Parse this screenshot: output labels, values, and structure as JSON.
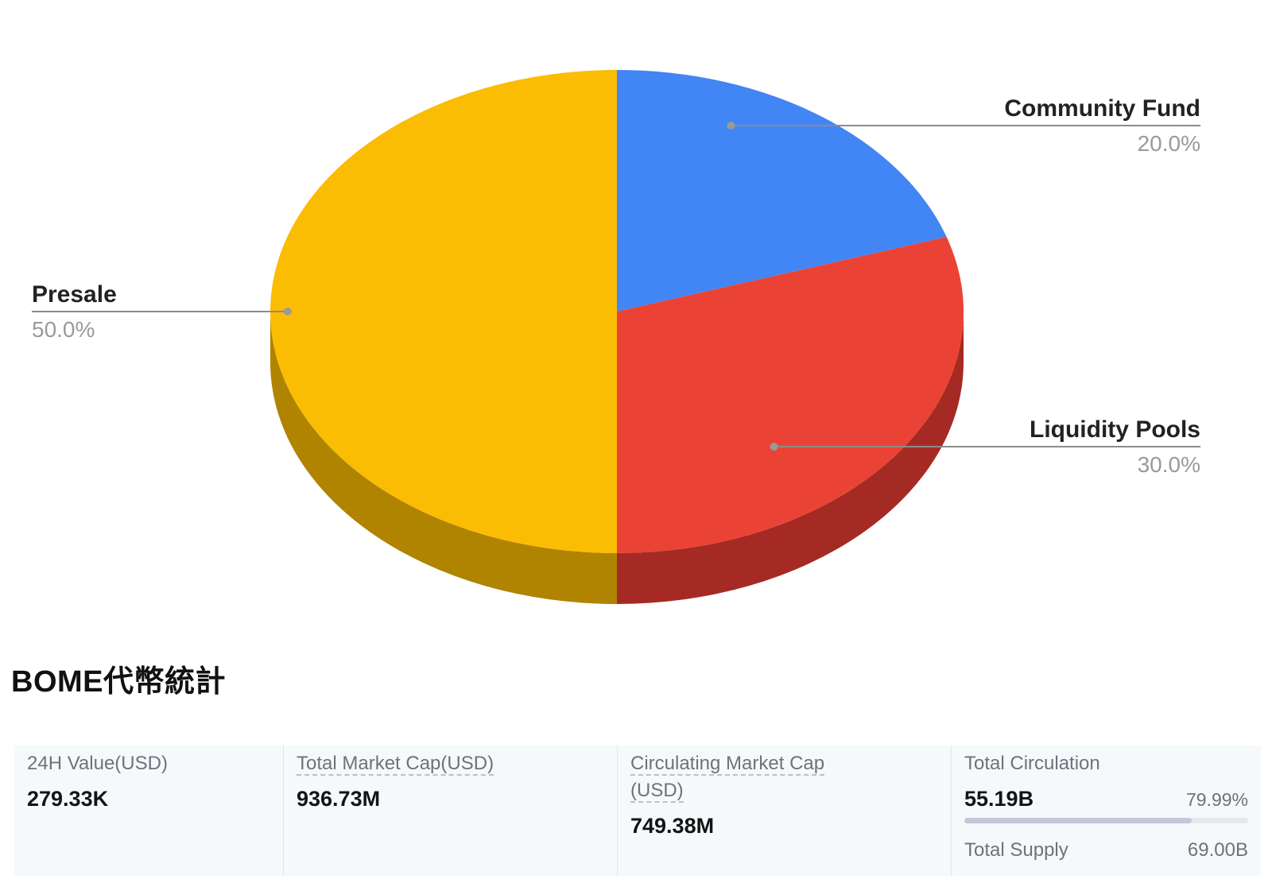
{
  "chart_data": {
    "type": "pie",
    "style": "3d",
    "slices": [
      {
        "name": "Community Fund",
        "value": 20.0,
        "label_pct": "20.0%",
        "color": "#4285F4",
        "side_color": "#2f5fb0"
      },
      {
        "name": "Liquidity Pools",
        "value": 30.0,
        "label_pct": "30.0%",
        "color": "#EA4335",
        "side_color": "#A52A24"
      },
      {
        "name": "Presale",
        "value": 50.0,
        "label_pct": "50.0%",
        "color": "#FBBC04",
        "side_color": "#B08300"
      }
    ],
    "legend": "callout-labels"
  },
  "stats_title": "BOME代幣統計",
  "stats": {
    "value_24h": {
      "label": "24H Value(USD)",
      "value": "279.33K"
    },
    "market_cap": {
      "label": "Total Market Cap(USD)",
      "value": "936.73M"
    },
    "circ_market_cap": {
      "label_line1": "Circulating Market Cap",
      "label_line2": "(USD)",
      "value": "749.38M"
    },
    "circulation": {
      "label": "Total Circulation",
      "value": "55.19B",
      "percent_text": "79.99%",
      "fraction": 0.7999
    },
    "supply": {
      "label": "Total Supply",
      "value": "69.00B"
    }
  }
}
